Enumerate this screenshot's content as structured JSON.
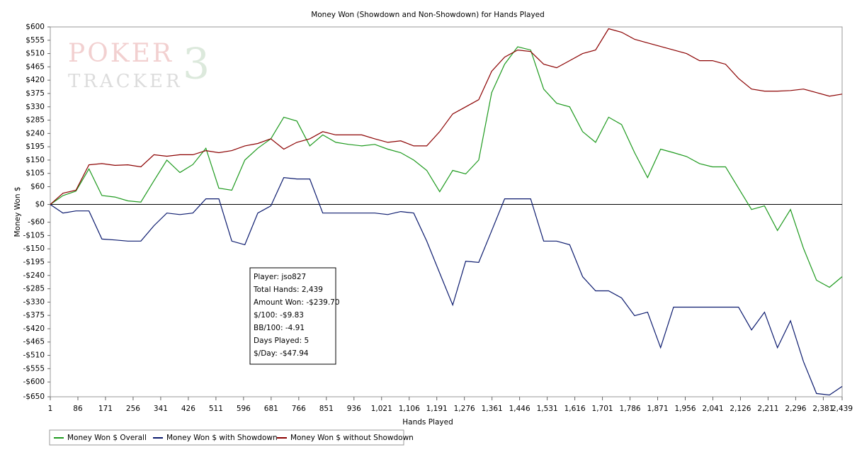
{
  "chart_data": {
    "type": "line",
    "title": "Money Won (Showdown and Non-Showdown) for Hands Played",
    "x_label": "Hands Played",
    "y_label": "Money Won $",
    "logo": {
      "line1": "POKER",
      "line2": "TRACKER",
      "mark": "3"
    },
    "info_box": [
      "Player: jso827",
      "Total Hands: 2,439",
      "Amount Won: -$239.70",
      "$/100: -$9.83",
      "BB/100: -4.91",
      "Days Played: 5",
      "$/Day: -$47.94"
    ],
    "legend": "bottom-left",
    "grid": false,
    "xlim": [
      1,
      2439
    ],
    "ylim": [
      -650,
      600
    ],
    "xticks": [
      1,
      86,
      171,
      256,
      341,
      426,
      511,
      596,
      681,
      766,
      851,
      936,
      {
        "value": 1021,
        "label": "1,021"
      },
      {
        "value": 1106,
        "label": "1,106"
      },
      {
        "value": 1191,
        "label": "1,191"
      },
      {
        "value": 1276,
        "label": "1,276"
      },
      {
        "value": 1361,
        "label": "1,361"
      },
      {
        "value": 1446,
        "label": "1,446"
      },
      {
        "value": 1531,
        "label": "1,531"
      },
      {
        "value": 1616,
        "label": "1,616"
      },
      {
        "value": 1701,
        "label": "1,701"
      },
      {
        "value": 1786,
        "label": "1,786"
      },
      {
        "value": 1871,
        "label": "1,871"
      },
      {
        "value": 1956,
        "label": "1,956"
      },
      {
        "value": 2041,
        "label": "2,041"
      },
      {
        "value": 2126,
        "label": "2,126"
      },
      {
        "value": 2211,
        "label": "2,211"
      },
      {
        "value": 2296,
        "label": "2,296"
      },
      {
        "value": 2381,
        "label": "2,381"
      },
      {
        "value": 2439,
        "label": "2,439"
      }
    ],
    "yticks": [
      {
        "value": 600,
        "label": "$600"
      },
      {
        "value": 555,
        "label": "$555"
      },
      {
        "value": 510,
        "label": "$510"
      },
      {
        "value": 465,
        "label": "$465"
      },
      {
        "value": 420,
        "label": "$420"
      },
      {
        "value": 375,
        "label": "$375"
      },
      {
        "value": 330,
        "label": "$330"
      },
      {
        "value": 285,
        "label": "$285"
      },
      {
        "value": 240,
        "label": "$240"
      },
      {
        "value": 195,
        "label": "$195"
      },
      {
        "value": 150,
        "label": "$150"
      },
      {
        "value": 105,
        "label": "$105"
      },
      {
        "value": 60,
        "label": "$60"
      },
      {
        "value": 0,
        "label": "$0"
      },
      {
        "value": -60,
        "label": "-$60"
      },
      {
        "value": -105,
        "label": "-$105"
      },
      {
        "value": -150,
        "label": "-$150"
      },
      {
        "value": -195,
        "label": "-$195"
      },
      {
        "value": -240,
        "label": "-$240"
      },
      {
        "value": -285,
        "label": "-$285"
      },
      {
        "value": -330,
        "label": "-$330"
      },
      {
        "value": -375,
        "label": "-$375"
      },
      {
        "value": -420,
        "label": "-$420"
      },
      {
        "value": -465,
        "label": "-$465"
      },
      {
        "value": -510,
        "label": "-$510"
      },
      {
        "value": -555,
        "label": "-$555"
      },
      {
        "value": -600,
        "label": "-$600"
      },
      {
        "value": -650,
        "label": "-$650"
      }
    ],
    "x": [
      1,
      40,
      80,
      120,
      160,
      200,
      240,
      280,
      320,
      360,
      400,
      440,
      480,
      520,
      560,
      600,
      640,
      680,
      720,
      760,
      800,
      840,
      880,
      920,
      960,
      1000,
      1040,
      1080,
      1120,
      1160,
      1200,
      1240,
      1280,
      1320,
      1360,
      1400,
      1440,
      1480,
      1520,
      1560,
      1600,
      1640,
      1680,
      1720,
      1760,
      1800,
      1840,
      1880,
      1920,
      1960,
      2000,
      2040,
      2080,
      2120,
      2160,
      2200,
      2240,
      2280,
      2320,
      2360,
      2400,
      2439
    ],
    "series": [
      {
        "name": "Money Won $ Overall",
        "color": "#1e9a1e",
        "values": [
          0,
          30,
          45,
          120,
          30,
          25,
          12,
          8,
          80,
          150,
          108,
          135,
          190,
          55,
          48,
          150,
          190,
          222,
          295,
          282,
          198,
          235,
          210,
          203,
          198,
          203,
          187,
          175,
          150,
          115,
          43,
          115,
          103,
          150,
          378,
          474,
          533,
          522,
          390,
          342,
          330,
          246,
          210,
          295,
          270,
          175,
          91,
          187,
          175,
          162,
          138,
          127,
          127,
          55,
          -17,
          -5,
          -88,
          -17,
          -148,
          -256,
          -280,
          -244
        ]
      },
      {
        "name": "Money Won $ with Showdown",
        "color": "#0b1a6e",
        "values": [
          0,
          -29,
          -22,
          -22,
          -117,
          -120,
          -124,
          -124,
          -72,
          -29,
          -34,
          -29,
          19,
          19,
          -124,
          -136,
          -29,
          -5,
          91,
          86,
          86,
          -29,
          -29,
          -29,
          -29,
          -29,
          -34,
          -24,
          -29,
          -124,
          -232,
          -340,
          -192,
          -196,
          -89,
          19,
          19,
          19,
          -124,
          -124,
          -136,
          -244,
          -292,
          -292,
          -316,
          -376,
          -364,
          -484,
          -347,
          -347,
          -347,
          -347,
          -347,
          -347,
          -424,
          -364,
          -484,
          -393,
          -531,
          -639,
          -644,
          -615
        ]
      },
      {
        "name": "Money Won $ without Showdown",
        "color": "#8b0000",
        "values": [
          0,
          38,
          48,
          134,
          138,
          132,
          134,
          127,
          168,
          163,
          168,
          168,
          182,
          175,
          182,
          198,
          206,
          222,
          187,
          210,
          222,
          246,
          235,
          235,
          235,
          222,
          210,
          215,
          198,
          198,
          246,
          306,
          330,
          354,
          450,
          498,
          522,
          517,
          474,
          462,
          486,
          510,
          522,
          594,
          582,
          558,
          546,
          534,
          522,
          510,
          486,
          486,
          474,
          426,
          390,
          383,
          383,
          385,
          390,
          378,
          366,
          373
        ]
      }
    ]
  }
}
